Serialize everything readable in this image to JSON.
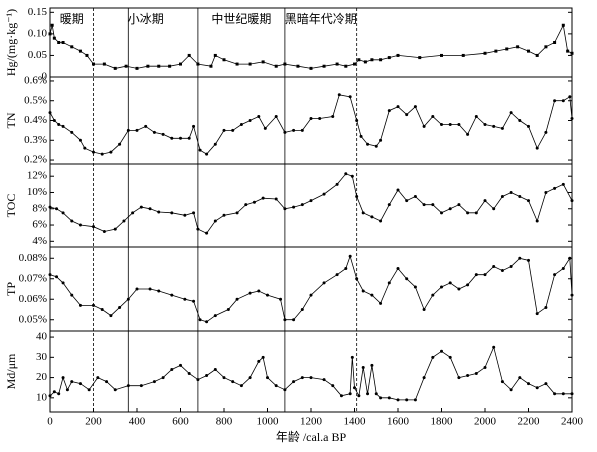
{
  "chart_data": [
    {
      "type": "line",
      "ylabel": "Hg/(mg·kg⁻¹)",
      "periods": [
        {
          "name": "暖期",
          "start": 0,
          "end": 200
        },
        {
          "name": "小冰期",
          "start": 200,
          "end": 680
        },
        {
          "name": "中世纪暖期",
          "start": 680,
          "end": 1080
        },
        {
          "name": "黑暗年代冷期",
          "start": 1080,
          "end": 1410
        }
      ],
      "boundaries": [
        {
          "x": 200,
          "style": "dashed"
        },
        {
          "x": 360,
          "style": "solid"
        },
        {
          "x": 680,
          "style": "solid"
        },
        {
          "x": 1080,
          "style": "solid"
        },
        {
          "x": 1410,
          "style": "dashed"
        }
      ],
      "x": [
        0,
        10,
        20,
        40,
        60,
        100,
        140,
        170,
        200,
        250,
        300,
        350,
        400,
        450,
        500,
        550,
        600,
        640,
        680,
        740,
        760,
        800,
        860,
        920,
        980,
        1040,
        1080,
        1140,
        1200,
        1260,
        1320,
        1360,
        1400,
        1420,
        1450,
        1480,
        1520,
        1560,
        1600,
        1700,
        1800,
        1900,
        2000,
        2050,
        2100,
        2150,
        2200,
        2240,
        2280,
        2320,
        2360,
        2380,
        2400
      ],
      "values": [
        0.1,
        0.12,
        0.09,
        0.08,
        0.08,
        0.07,
        0.06,
        0.05,
        0.03,
        0.03,
        0.02,
        0.025,
        0.02,
        0.025,
        0.025,
        0.025,
        0.03,
        0.05,
        0.03,
        0.025,
        0.05,
        0.04,
        0.03,
        0.03,
        0.035,
        0.025,
        0.03,
        0.025,
        0.02,
        0.025,
        0.03,
        0.025,
        0.03,
        0.04,
        0.035,
        0.04,
        0.04,
        0.045,
        0.05,
        0.045,
        0.05,
        0.05,
        0.055,
        0.06,
        0.065,
        0.07,
        0.06,
        0.05,
        0.07,
        0.08,
        0.12,
        0.06,
        0.055
      ],
      "ylim": [
        0,
        0.16
      ],
      "yticks": [
        0,
        0.05,
        {
          "value": 0.1,
          "label": "0.10"
        },
        0.15
      ],
      "color": "#000000",
      "marker": "square"
    },
    {
      "type": "line",
      "ylabel": "TN",
      "x": [
        0,
        20,
        40,
        60,
        100,
        140,
        160,
        200,
        240,
        280,
        320,
        360,
        400,
        440,
        480,
        520,
        560,
        600,
        640,
        660,
        690,
        720,
        760,
        800,
        840,
        880,
        920,
        960,
        990,
        1040,
        1080,
        1120,
        1160,
        1200,
        1240,
        1300,
        1330,
        1380,
        1410,
        1430,
        1460,
        1500,
        1520,
        1560,
        1600,
        1640,
        1680,
        1720,
        1760,
        1800,
        1840,
        1880,
        1920,
        1960,
        2000,
        2040,
        2080,
        2120,
        2160,
        2200,
        2240,
        2280,
        2320,
        2360,
        2390,
        2400
      ],
      "values": [
        0.44,
        0.4,
        0.38,
        0.37,
        0.34,
        0.3,
        0.26,
        0.24,
        0.23,
        0.24,
        0.28,
        0.35,
        0.35,
        0.37,
        0.34,
        0.33,
        0.31,
        0.31,
        0.31,
        0.37,
        0.25,
        0.23,
        0.28,
        0.35,
        0.35,
        0.38,
        0.4,
        0.42,
        0.36,
        0.42,
        0.34,
        0.35,
        0.35,
        0.41,
        0.41,
        0.42,
        0.53,
        0.52,
        0.4,
        0.32,
        0.28,
        0.27,
        0.3,
        0.45,
        0.47,
        0.43,
        0.47,
        0.37,
        0.42,
        0.38,
        0.38,
        0.38,
        0.33,
        0.42,
        0.38,
        0.37,
        0.36,
        0.44,
        0.4,
        0.37,
        0.26,
        0.34,
        0.5,
        0.5,
        0.52,
        0.41
      ],
      "ylim": [
        0.18,
        0.62
      ],
      "yticks": [
        {
          "value": 0.2,
          "label": "0.2%"
        },
        {
          "value": 0.3,
          "label": "0.3%"
        },
        {
          "value": 0.4,
          "label": "0.4%"
        },
        {
          "value": 0.5,
          "label": "0.5%"
        },
        {
          "value": 0.6,
          "label": "0.6%"
        }
      ],
      "color": "#000000",
      "marker": "circle"
    },
    {
      "type": "line",
      "ylabel": "TOC",
      "x": [
        0,
        30,
        60,
        100,
        140,
        200,
        250,
        300,
        340,
        380,
        420,
        460,
        500,
        560,
        620,
        660,
        680,
        720,
        760,
        800,
        860,
        900,
        940,
        980,
        1040,
        1080,
        1120,
        1160,
        1200,
        1260,
        1320,
        1360,
        1390,
        1410,
        1440,
        1480,
        1520,
        1560,
        1600,
        1640,
        1680,
        1720,
        1760,
        1800,
        1840,
        1880,
        1920,
        1960,
        2000,
        2040,
        2080,
        2120,
        2160,
        2200,
        2240,
        2280,
        2320,
        2360,
        2400
      ],
      "values": [
        8.2,
        8.0,
        7.5,
        6.5,
        6.0,
        5.8,
        5.2,
        5.5,
        6.5,
        7.5,
        8.2,
        8.0,
        7.6,
        7.5,
        7.2,
        7.5,
        5.5,
        5.0,
        6.5,
        7.2,
        7.5,
        8.5,
        8.8,
        9.3,
        9.2,
        8.0,
        8.2,
        8.5,
        9.0,
        9.8,
        11.0,
        12.3,
        12.0,
        9.5,
        7.5,
        7.0,
        6.5,
        8.5,
        10.3,
        9.0,
        9.5,
        8.5,
        8.5,
        7.5,
        8.0,
        8.5,
        7.5,
        7.5,
        9.0,
        8.0,
        9.5,
        10.0,
        9.5,
        9.0,
        6.5,
        10.0,
        10.5,
        11.0,
        9.0
      ],
      "ylim": [
        3.3,
        13.5
      ],
      "yticks": [
        {
          "value": 4,
          "label": "4%"
        },
        {
          "value": 6,
          "label": "6%"
        },
        {
          "value": 8,
          "label": "8%"
        },
        {
          "value": 10,
          "label": "10%"
        },
        {
          "value": 12,
          "label": "12%"
        }
      ],
      "color": "#000000",
      "marker": "circle"
    },
    {
      "type": "line",
      "ylabel": "TP",
      "x": [
        0,
        30,
        60,
        100,
        140,
        200,
        240,
        280,
        320,
        360,
        400,
        460,
        500,
        560,
        620,
        660,
        690,
        720,
        760,
        820,
        860,
        920,
        960,
        1000,
        1060,
        1080,
        1120,
        1160,
        1200,
        1260,
        1320,
        1360,
        1380,
        1410,
        1440,
        1480,
        1520,
        1560,
        1600,
        1640,
        1680,
        1720,
        1760,
        1800,
        1840,
        1880,
        1920,
        1960,
        2000,
        2040,
        2080,
        2120,
        2160,
        2200,
        2240,
        2280,
        2320,
        2360,
        2390,
        2400
      ],
      "values": [
        0.072,
        0.071,
        0.068,
        0.062,
        0.057,
        0.057,
        0.055,
        0.052,
        0.056,
        0.06,
        0.065,
        0.065,
        0.064,
        0.062,
        0.06,
        0.059,
        0.05,
        0.049,
        0.052,
        0.055,
        0.06,
        0.063,
        0.064,
        0.062,
        0.06,
        0.05,
        0.05,
        0.055,
        0.062,
        0.068,
        0.072,
        0.075,
        0.081,
        0.07,
        0.064,
        0.062,
        0.058,
        0.068,
        0.075,
        0.07,
        0.066,
        0.055,
        0.062,
        0.066,
        0.068,
        0.065,
        0.067,
        0.072,
        0.072,
        0.076,
        0.074,
        0.076,
        0.08,
        0.079,
        0.053,
        0.056,
        0.072,
        0.075,
        0.08,
        0.062
      ],
      "ylim": [
        0.0445,
        0.0855
      ],
      "yticks": [
        {
          "value": 0.05,
          "label": "0.05%"
        },
        {
          "value": 0.06,
          "label": "0.06%"
        },
        {
          "value": 0.07,
          "label": "0.07%"
        },
        {
          "value": 0.08,
          "label": "0.08%"
        }
      ],
      "color": "#000000",
      "marker": "circle"
    },
    {
      "type": "line",
      "ylabel": "Md/μm",
      "xlabel": "年龄 /cal.a BP",
      "x": [
        0,
        20,
        40,
        60,
        80,
        100,
        140,
        180,
        220,
        260,
        300,
        360,
        420,
        480,
        520,
        560,
        600,
        640,
        680,
        720,
        760,
        800,
        840,
        880,
        920,
        960,
        980,
        1000,
        1040,
        1080,
        1120,
        1160,
        1200,
        1260,
        1300,
        1340,
        1380,
        1390,
        1400,
        1420,
        1440,
        1460,
        1480,
        1500,
        1520,
        1560,
        1600,
        1640,
        1680,
        1720,
        1760,
        1800,
        1840,
        1880,
        1920,
        1960,
        2000,
        2040,
        2080,
        2120,
        2160,
        2200,
        2240,
        2280,
        2320,
        2360,
        2400
      ],
      "values": [
        11,
        13,
        12,
        20,
        14,
        18,
        17,
        14,
        20,
        18,
        14,
        16,
        16,
        18,
        20,
        24,
        26,
        22,
        19,
        21,
        24,
        20,
        18,
        16,
        20,
        28,
        30,
        20,
        16,
        14,
        18,
        20,
        20,
        19,
        16,
        11,
        12,
        30,
        15,
        11,
        25,
        12,
        26,
        12,
        10,
        10,
        9,
        9,
        9,
        20,
        30,
        33,
        30,
        20,
        21,
        22,
        25,
        35,
        18,
        14,
        20,
        17,
        15,
        17,
        12,
        12,
        12
      ],
      "ylim": [
        3,
        43
      ],
      "yticks": [
        10,
        20,
        30,
        40
      ],
      "color": "#000000",
      "marker": "circle",
      "xlim": [
        0,
        2400
      ],
      "xticks": [
        0,
        200,
        400,
        600,
        800,
        1000,
        1200,
        1400,
        1600,
        1800,
        2000,
        2200,
        2400
      ]
    }
  ]
}
